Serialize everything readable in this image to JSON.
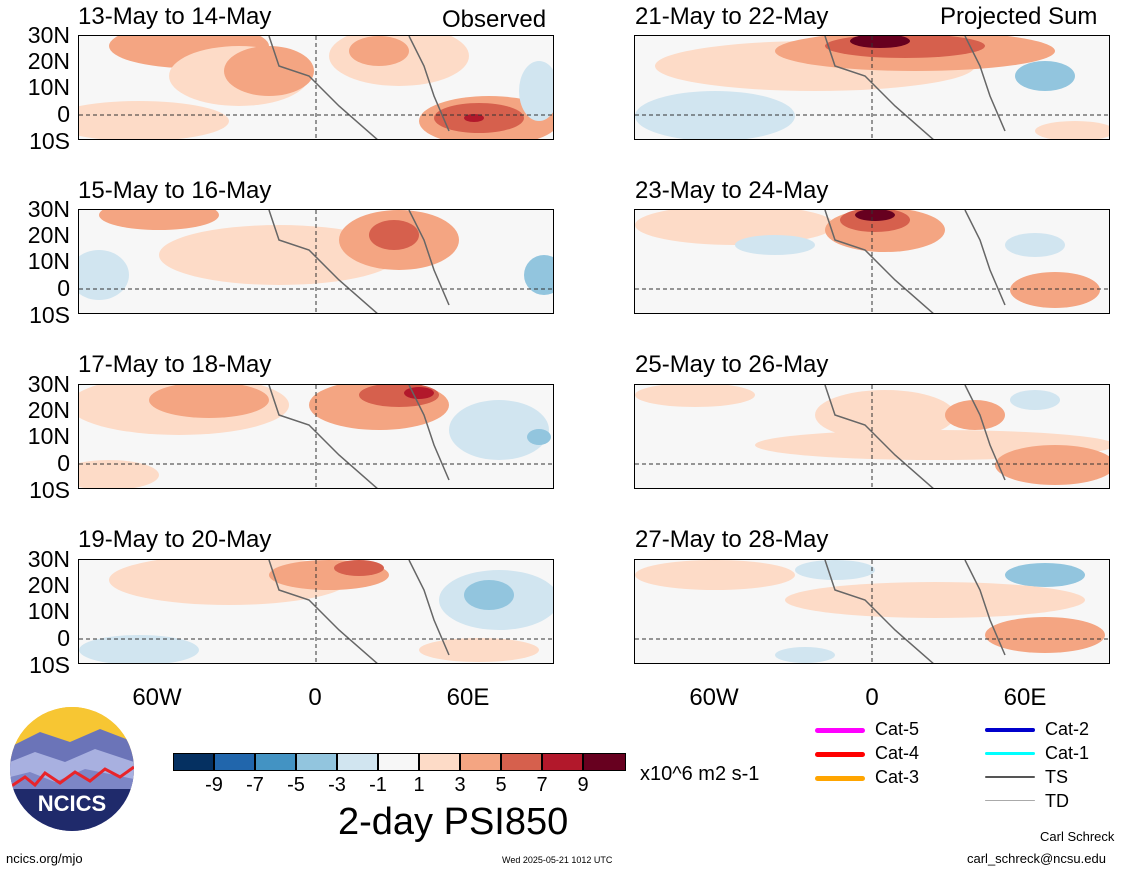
{
  "header": {
    "observed_label": "Observed",
    "projected_label": "Projected Sum"
  },
  "panels": {
    "left": [
      "13-May to 14-May",
      "15-May to 16-May",
      "17-May to 18-May",
      "19-May to 20-May"
    ],
    "right": [
      "21-May to 22-May",
      "23-May to 24-May",
      "25-May to 26-May",
      "27-May to 28-May"
    ]
  },
  "axes": {
    "lat_labels": [
      "30N",
      "20N",
      "10N",
      "0",
      "10S"
    ],
    "lon_labels": [
      "60W",
      "0",
      "60E"
    ]
  },
  "colorbar": {
    "tick_labels": [
      "-9",
      "-7",
      "-5",
      "-3",
      "-1",
      "1",
      "3",
      "5",
      "7",
      "9"
    ],
    "colors": [
      "#053061",
      "#2166ac",
      "#4393c3",
      "#92c5de",
      "#d1e5f0",
      "#f7f7f7",
      "#fddbc7",
      "#f4a582",
      "#d6604d",
      "#b2182b",
      "#67001f"
    ],
    "units": "x10^6 m2 s-1",
    "title": "2-day PSI850"
  },
  "legend": {
    "items": [
      {
        "label": "Cat-5",
        "color": "#ff00ff"
      },
      {
        "label": "Cat-4",
        "color": "#ff0000"
      },
      {
        "label": "Cat-3",
        "color": "#ffa500"
      },
      {
        "label": "Cat-2",
        "color": "#0000cc"
      },
      {
        "label": "Cat-1",
        "color": "#00ffff"
      },
      {
        "label": "TS",
        "color": "#555555"
      },
      {
        "label": "TD",
        "color": "#aaaaaa"
      }
    ]
  },
  "logo": {
    "text": "NCICS"
  },
  "footer": {
    "url": "ncics.org/mjo",
    "timestamp": "Wed 2025-05-21 1012 UTC",
    "author": "Carl Schreck",
    "email": "carl_schreck@ncsu.edu"
  }
}
